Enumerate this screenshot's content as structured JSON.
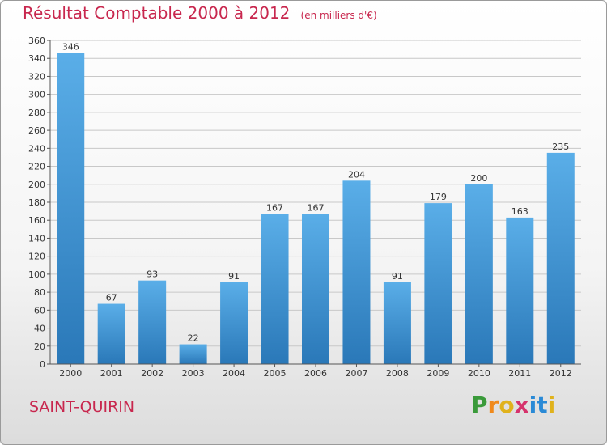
{
  "header": {
    "title": "Résultat Comptable 2000 à 2012",
    "unit": "(en milliers d'€)"
  },
  "commune": "SAINT-QUIRIN",
  "logo": {
    "letters": [
      "P",
      "r",
      "o",
      "x",
      "i",
      "t",
      "i"
    ],
    "colors": [
      "#3a9a3a",
      "#f08a1c",
      "#e0b21c",
      "#d6336c",
      "#2a8ad6",
      "#2a8ad6",
      "#e0b21c"
    ]
  },
  "colors": {
    "bar_top": "#5aaee8",
    "bar_bottom": "#2a78b8",
    "grid": "#c8c8c8",
    "axis": "#555555"
  },
  "chart_data": {
    "type": "bar",
    "title": "Résultat Comptable 2000 à 2012",
    "subtitle": "(en milliers d'€)",
    "xlabel": "",
    "ylabel": "",
    "categories": [
      "2000",
      "2001",
      "2002",
      "2003",
      "2004",
      "2005",
      "2006",
      "2007",
      "2008",
      "2009",
      "2010",
      "2011",
      "2012"
    ],
    "values": [
      346,
      67,
      93,
      22,
      91,
      167,
      167,
      204,
      91,
      179,
      200,
      163,
      235
    ],
    "ylim": [
      0,
      360
    ],
    "ytick_step": 20,
    "grid": true,
    "legend": "none"
  }
}
